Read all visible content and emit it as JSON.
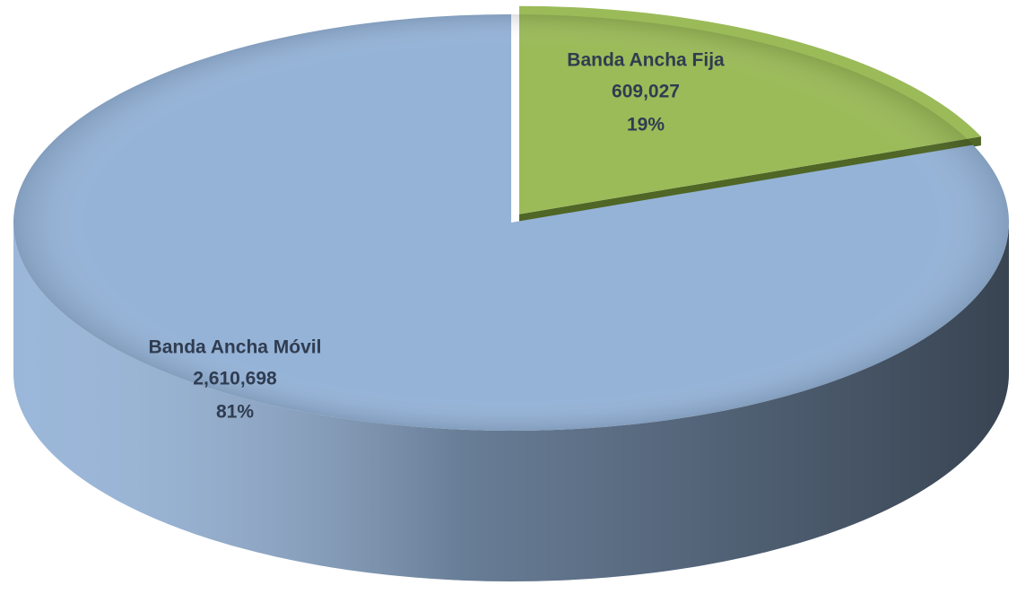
{
  "chart_data": {
    "type": "pie",
    "categories": [
      "Banda Ancha Fija",
      "Banda Ancha Móvil"
    ],
    "values": [
      609027,
      2610698
    ],
    "value_labels": [
      "609,027",
      "2,610,698"
    ],
    "percentages": [
      19,
      81
    ],
    "percentage_labels": [
      "19%",
      "81%"
    ],
    "colors": [
      "#9bbb59",
      "#95b3d7"
    ],
    "exploded": [
      true,
      false
    ]
  }
}
